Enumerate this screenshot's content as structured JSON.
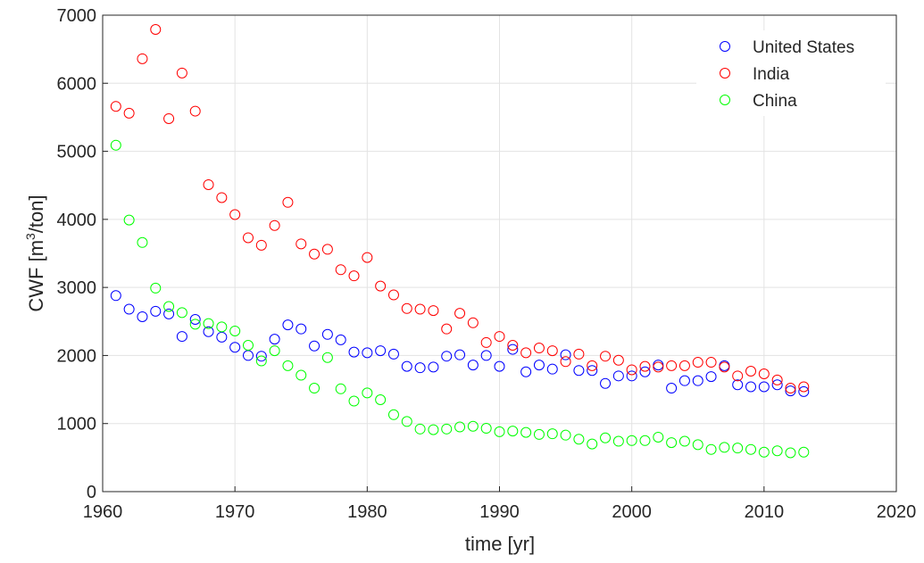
{
  "chart_data": {
    "type": "scatter",
    "xlabel": "time [yr]",
    "ylabel_main": "CWF [m",
    "ylabel_sup": "3",
    "ylabel_end": "/ton]",
    "xlim": [
      1960,
      2020
    ],
    "ylim": [
      0,
      7000
    ],
    "x_ticks": [
      1960,
      1970,
      1980,
      1990,
      2000,
      2010,
      2020
    ],
    "y_ticks": [
      0,
      1000,
      2000,
      3000,
      4000,
      5000,
      6000,
      7000
    ],
    "grid": true,
    "legend_position": "top-right",
    "x": [
      1961,
      1962,
      1963,
      1964,
      1965,
      1966,
      1967,
      1968,
      1969,
      1970,
      1971,
      1972,
      1973,
      1974,
      1975,
      1976,
      1977,
      1978,
      1979,
      1980,
      1981,
      1982,
      1983,
      1984,
      1985,
      1986,
      1987,
      1988,
      1989,
      1990,
      1991,
      1992,
      1993,
      1994,
      1995,
      1996,
      1997,
      1998,
      1999,
      2000,
      2001,
      2002,
      2003,
      2004,
      2005,
      2006,
      2007,
      2008,
      2009,
      2010,
      2011,
      2012,
      2013
    ],
    "series": [
      {
        "name": "United States",
        "color": "#0000ff",
        "values": [
          2880,
          2680,
          2570,
          2650,
          2610,
          2280,
          2530,
          2350,
          2270,
          2120,
          2000,
          1990,
          2240,
          2450,
          2390,
          2140,
          2310,
          2230,
          2050,
          2040,
          2070,
          2020,
          1840,
          1820,
          1830,
          1990,
          2010,
          1860,
          2000,
          1840,
          2090,
          1760,
          1860,
          1800,
          2010,
          1780,
          1780,
          1590,
          1700,
          1700,
          1760,
          1860,
          1520,
          1630,
          1630,
          1690,
          1850,
          1570,
          1540,
          1540,
          1570,
          1480,
          1470
        ]
      },
      {
        "name": "India",
        "color": "#ff0000",
        "values": [
          5660,
          5560,
          6360,
          6790,
          5480,
          6150,
          5590,
          4510,
          4320,
          4070,
          3730,
          3620,
          3910,
          4250,
          3640,
          3490,
          3560,
          3260,
          3170,
          3440,
          3020,
          2890,
          2690,
          2680,
          2660,
          2390,
          2620,
          2480,
          2190,
          2280,
          2150,
          2040,
          2110,
          2070,
          1910,
          2020,
          1850,
          1990,
          1930,
          1790,
          1840,
          1830,
          1850,
          1850,
          1900,
          1900,
          1830,
          1700,
          1770,
          1730,
          1640,
          1520,
          1540
        ]
      },
      {
        "name": "China",
        "color": "#00ff00",
        "values": [
          5090,
          3990,
          3660,
          2990,
          2720,
          2630,
          2460,
          2470,
          2420,
          2360,
          2150,
          1920,
          2070,
          1850,
          1710,
          1520,
          1970,
          1510,
          1330,
          1450,
          1350,
          1130,
          1030,
          920,
          910,
          920,
          950,
          960,
          930,
          880,
          890,
          870,
          840,
          850,
          830,
          770,
          700,
          790,
          740,
          750,
          750,
          800,
          720,
          740,
          690,
          620,
          650,
          640,
          620,
          580,
          600,
          570,
          580
        ]
      }
    ]
  }
}
